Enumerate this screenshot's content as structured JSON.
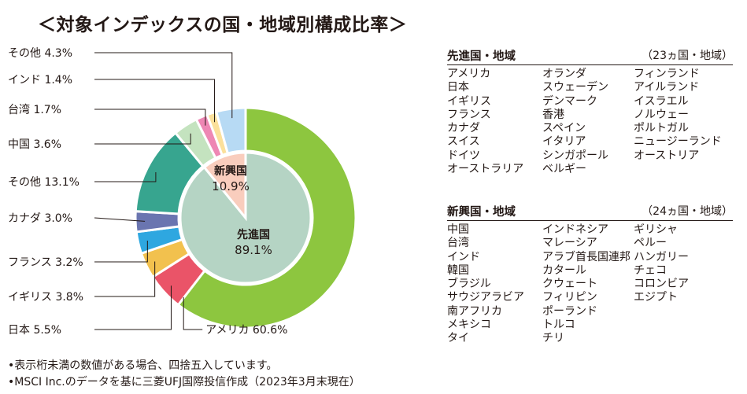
{
  "title": "＜対象インデックスの国・地域別構成比率＞",
  "chart_data": {
    "type": "pie",
    "outer_ring": {
      "slices": [
        {
          "label": "アメリカ",
          "value": 60.6,
          "value_text": "60.6%",
          "color": "#8dc63f"
        },
        {
          "label": "日本",
          "value": 5.5,
          "value_text": "5.5%",
          "color": "#ea5468"
        },
        {
          "label": "イギリス",
          "value": 3.8,
          "value_text": "3.8%",
          "color": "#f2c14e"
        },
        {
          "label": "フランス",
          "value": 3.2,
          "value_text": "3.2%",
          "color": "#2ea7e0"
        },
        {
          "label": "カナダ",
          "value": 3.0,
          "value_text": "3.0%",
          "color": "#6a75b0"
        },
        {
          "label": "その他",
          "value": 13.1,
          "value_text": "13.1%",
          "color": "#37a58f"
        },
        {
          "label": "中国",
          "value": 3.6,
          "value_text": "3.6%",
          "color": "#c4e3bf"
        },
        {
          "label": "台湾",
          "value": 1.7,
          "value_text": "1.7%",
          "color": "#ee87b4"
        },
        {
          "label": "インド",
          "value": 1.4,
          "value_text": "1.4%",
          "color": "#fbe09b"
        },
        {
          "label": "その他",
          "value": 4.3,
          "value_text": "4.3%",
          "color": "#b7daf4"
        }
      ]
    },
    "inner_pie": {
      "slices": [
        {
          "label": "先進国",
          "value": 89.1,
          "value_text": "89.1%",
          "color": "#b5d4c4"
        },
        {
          "label": "新興国",
          "value": 10.9,
          "value_text": "10.9%",
          "color": "#f9cdbd"
        }
      ]
    }
  },
  "developed": {
    "title": "先進国・地域",
    "count": "（23ヵ国・地域）",
    "columns": [
      [
        "アメリカ",
        "日本",
        "イギリス",
        "フランス",
        "カナダ",
        "スイス",
        "ドイツ",
        "オーストラリア"
      ],
      [
        "オランダ",
        "スウェーデン",
        "デンマーク",
        "香港",
        "スペイン",
        "イタリア",
        "シンガポール",
        "ベルギー"
      ],
      [
        "フィンランド",
        "アイルランド",
        "イスラエル",
        "ノルウェー",
        "ポルトガル",
        "ニュージーランド",
        "オーストリア"
      ]
    ]
  },
  "emerging": {
    "title": "新興国・地域",
    "count": "（24ヵ国・地域）",
    "columns": [
      [
        "中国",
        "台湾",
        "インド",
        "韓国",
        "ブラジル",
        "サウジアラビア",
        "南アフリカ",
        "メキシコ",
        "タイ"
      ],
      [
        "インドネシア",
        "マレーシア",
        "アラブ首長国連邦",
        "カタール",
        "クウェート",
        "フィリピン",
        "ポーランド",
        "トルコ",
        "チリ"
      ],
      [
        "ギリシャ",
        "ペルー",
        "ハンガリー",
        "チェコ",
        "コロンビア",
        "エジプト"
      ]
    ]
  },
  "notes": [
    "•表示桁未満の数値がある場合、四捨五入しています。",
    "•MSCI Inc.のデータを基に三菱UFJ国際投信作成（2023年3月末現在）"
  ]
}
